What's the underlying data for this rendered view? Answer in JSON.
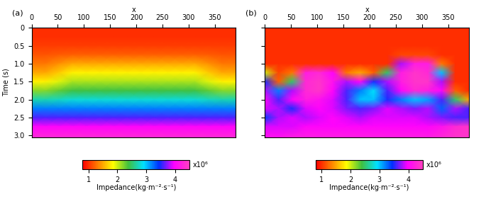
{
  "chart_data": [
    {
      "type": "heatmap",
      "label": "(a)",
      "x_label": "x",
      "y_label": "Time (s)",
      "x": [
        0,
        26,
        52,
        78,
        104,
        130,
        156,
        182,
        208,
        234,
        260,
        286,
        312,
        338,
        364,
        390
      ],
      "time": [
        0,
        0.25,
        0.5,
        0.75,
        1.0,
        1.25,
        1.5,
        1.75,
        2.0,
        2.25,
        2.5,
        2.75,
        3.05
      ],
      "cells": [
        [
          1.0,
          1.0,
          1.0,
          1.0,
          1.0,
          1.0,
          1.0,
          1.0,
          1.0,
          1.0,
          1.0,
          1.0,
          1.0,
          1.0,
          1.0,
          1.0
        ],
        [
          1.0,
          1.0,
          1.0,
          1.0,
          1.0,
          1.0,
          1.0,
          1.0,
          1.0,
          1.0,
          1.0,
          1.0,
          1.0,
          1.0,
          1.0,
          1.0
        ],
        [
          1.05,
          1.05,
          1.05,
          1.05,
          1.05,
          1.05,
          1.05,
          1.05,
          1.05,
          1.05,
          1.05,
          1.05,
          1.05,
          1.05,
          1.05,
          1.05
        ],
        [
          1.15,
          1.15,
          1.18,
          1.2,
          1.2,
          1.2,
          1.2,
          1.2,
          1.2,
          1.2,
          1.2,
          1.2,
          1.2,
          1.18,
          1.15,
          1.15
        ],
        [
          1.3,
          1.3,
          1.4,
          1.5,
          1.5,
          1.5,
          1.5,
          1.5,
          1.5,
          1.5,
          1.5,
          1.5,
          1.5,
          1.4,
          1.3,
          1.3
        ],
        [
          1.5,
          1.5,
          1.65,
          1.8,
          1.8,
          1.8,
          1.8,
          1.8,
          1.8,
          1.8,
          1.8,
          1.8,
          1.8,
          1.65,
          1.5,
          1.5
        ],
        [
          1.8,
          1.8,
          1.95,
          2.1,
          2.1,
          2.1,
          2.1,
          2.1,
          2.1,
          2.1,
          2.1,
          2.1,
          2.1,
          1.95,
          1.8,
          1.8
        ],
        [
          2.2,
          2.2,
          2.3,
          2.4,
          2.4,
          2.4,
          2.4,
          2.4,
          2.4,
          2.4,
          2.4,
          2.4,
          2.4,
          2.3,
          2.2,
          2.2
        ],
        [
          2.7,
          2.7,
          2.75,
          2.8,
          2.8,
          2.8,
          2.8,
          2.8,
          2.8,
          2.8,
          2.8,
          2.8,
          2.8,
          2.75,
          2.7,
          2.7
        ],
        [
          3.2,
          3.2,
          3.2,
          3.2,
          3.2,
          3.2,
          3.2,
          3.2,
          3.2,
          3.2,
          3.2,
          3.2,
          3.2,
          3.2,
          3.2,
          3.2
        ],
        [
          3.6,
          3.6,
          3.6,
          3.6,
          3.6,
          3.6,
          3.6,
          3.6,
          3.6,
          3.6,
          3.6,
          3.6,
          3.6,
          3.6,
          3.6,
          3.6
        ],
        [
          4.0,
          4.0,
          4.0,
          4.0,
          4.0,
          4.0,
          4.0,
          4.0,
          4.0,
          4.0,
          4.0,
          4.0,
          4.0,
          4.0,
          4.0,
          4.0
        ],
        [
          4.3,
          4.3,
          4.3,
          4.3,
          4.3,
          4.3,
          4.3,
          4.3,
          4.3,
          4.3,
          4.3,
          4.3,
          4.3,
          4.3,
          4.3,
          4.3
        ]
      ],
      "xlim": [
        0,
        390
      ],
      "ylim": [
        3.05,
        0
      ],
      "xticks": [
        0,
        50,
        100,
        150,
        200,
        250,
        300,
        350
      ],
      "yticks": [
        0,
        0.5,
        1.0,
        1.5,
        2.0,
        2.5,
        3.0
      ],
      "colorbar": {
        "label": "Impedance(kg·m⁻²·s⁻¹)",
        "multiplier": "x10⁶",
        "range": [
          0.8,
          4.5
        ],
        "ticks": [
          1,
          2,
          3,
          4
        ]
      }
    },
    {
      "type": "heatmap",
      "label": "(b)",
      "x_label": "x",
      "tick_labels": "x",
      "x": [
        0,
        26,
        52,
        78,
        104,
        130,
        156,
        182,
        208,
        234,
        260,
        286,
        312,
        338,
        364,
        390
      ],
      "time": [
        0,
        0.25,
        0.5,
        0.75,
        1.0,
        1.25,
        1.5,
        1.75,
        2.0,
        2.25,
        2.5,
        2.75,
        3.05
      ],
      "cells": [
        [
          1.0,
          1.0,
          1.0,
          1.0,
          1.0,
          1.0,
          1.0,
          1.0,
          1.0,
          1.0,
          1.0,
          1.0,
          1.0,
          1.0,
          1.0,
          1.0
        ],
        [
          1.0,
          1.0,
          1.0,
          1.0,
          1.0,
          1.0,
          1.0,
          1.0,
          1.0,
          1.0,
          1.0,
          1.0,
          1.0,
          1.0,
          1.0,
          1.0
        ],
        [
          1.0,
          1.0,
          1.0,
          1.0,
          1.0,
          1.0,
          1.0,
          1.0,
          1.0,
          1.0,
          1.0,
          1.0,
          1.0,
          1.0,
          1.0,
          1.0
        ],
        [
          1.0,
          1.0,
          1.0,
          1.0,
          1.0,
          1.0,
          1.0,
          1.0,
          1.0,
          1.0,
          1.1,
          1.1,
          1.1,
          1.0,
          1.0,
          1.0
        ],
        [
          1.0,
          1.0,
          1.0,
          1.0,
          1.0,
          1.0,
          1.0,
          1.0,
          1.0,
          1.0,
          3.8,
          4.2,
          4.2,
          1.3,
          1.0,
          1.0
        ],
        [
          2.0,
          1.1,
          1.3,
          4.2,
          4.3,
          4.0,
          1.3,
          1.5,
          1.2,
          2.5,
          4.2,
          4.4,
          4.3,
          3.0,
          1.0,
          1.0
        ],
        [
          3.5,
          1.2,
          2.5,
          4.3,
          4.4,
          4.1,
          3.8,
          4.0,
          3.5,
          3.8,
          4.2,
          4.4,
          4.4,
          3.8,
          1.0,
          1.0
        ],
        [
          3.8,
          3.2,
          3.8,
          4.3,
          4.4,
          4.0,
          3.6,
          3.2,
          2.9,
          3.6,
          4.0,
          4.3,
          4.2,
          4.0,
          1.2,
          1.0
        ],
        [
          4.0,
          3.6,
          4.0,
          4.2,
          4.1,
          3.9,
          3.6,
          3.0,
          3.0,
          3.5,
          3.2,
          3.0,
          3.1,
          3.6,
          2.5,
          1.5
        ],
        [
          3.9,
          3.8,
          3.5,
          3.9,
          4.0,
          3.9,
          3.7,
          3.6,
          3.7,
          3.9,
          3.8,
          3.7,
          3.8,
          3.3,
          3.8,
          3.6
        ],
        [
          3.4,
          3.8,
          3.9,
          3.8,
          3.9,
          4.0,
          3.9,
          3.8,
          3.9,
          3.9,
          3.9,
          3.9,
          3.8,
          3.7,
          3.6,
          3.6
        ],
        [
          3.9,
          3.9,
          3.9,
          4.0,
          4.0,
          4.0,
          4.0,
          4.0,
          4.0,
          4.0,
          4.0,
          4.0,
          4.0,
          4.1,
          4.3,
          4.4
        ],
        [
          4.1,
          4.1,
          4.2,
          4.2,
          4.2,
          4.2,
          4.2,
          4.2,
          4.2,
          4.2,
          4.2,
          4.2,
          4.2,
          4.3,
          4.4,
          4.4
        ]
      ],
      "xlim": [
        0,
        390
      ],
      "ylim": [
        3.05,
        0
      ],
      "xticks": [
        0,
        50,
        100,
        150,
        200,
        250,
        300,
        350
      ],
      "yticks": [
        0,
        0.5,
        1.0,
        1.5,
        2.0,
        2.5,
        3.0
      ],
      "colorbar": {
        "label": "Impedance(kg·m⁻²·s⁻¹)",
        "multiplier": "x10⁶",
        "range": [
          0.8,
          4.5
        ],
        "ticks": [
          1,
          2,
          3,
          4
        ]
      }
    }
  ]
}
